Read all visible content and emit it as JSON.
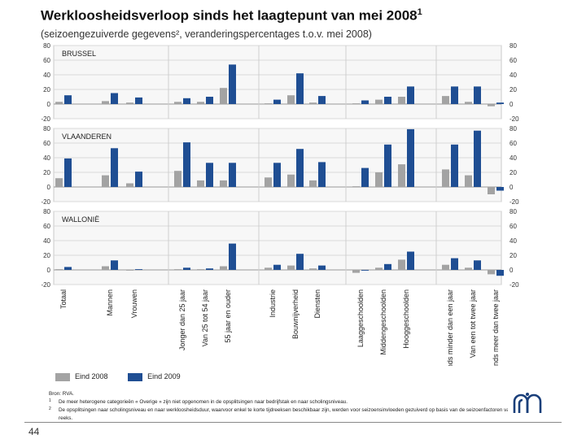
{
  "title": "Werkloosheidsverloop sinds het laagtepunt van mei 2008",
  "title_sup": "1",
  "subtitle": "(seizoengezuiverde gegevens², veranderingspercentages t.o.v. mei 2008)",
  "colors": {
    "eind2008": "#a3a3a3",
    "eind2009": "#1f4e93"
  },
  "legend": {
    "eind2008": "Eind 2008",
    "eind2009": "Eind 2009"
  },
  "source": "Bron: RVA.",
  "footnotes": [
    {
      "mark": "1",
      "text": "De meer heterogene categorieën « Overige » zijn niet opgenomen in de opsplitsingen naar bedrijfstak en naar scholingsniveau."
    },
    {
      "mark": "2",
      "text": "De opsplitsingen naar scholingsniveau en naar werkloosheidsduur, waarvoor enkel te korte tijdreeksen beschikbaar zijn, werden voor seizoensinvloeden gezuiverd op basis van de seizoenfactoren van de totale reeks."
    }
  ],
  "page_number": "44",
  "chart_data": {
    "type": "bar",
    "ylim": [
      -20,
      80
    ],
    "yticks": [
      "80",
      "60",
      "40",
      "20",
      "0",
      "-20"
    ],
    "categories": [
      "Totaal",
      "Mannen",
      "Vrouwen",
      "Jonger dan 25 jaar",
      "Van 25 tot 54 jaar",
      "55 jaar en ouder",
      "Industrie",
      "Bouwnijverheid",
      "Diensten",
      "Laaggeschoolden",
      "Middengeschoolden",
      "Hooggeschoolden",
      "Sinds minder dan een jaar",
      "Van een tot twee jaar",
      "Sinds meer dan twee jaar"
    ],
    "panels": [
      {
        "label": "BRUSSEL",
        "series": [
          {
            "name": "Eind 2008",
            "values": [
              3,
              4,
              2,
              3,
              3,
              22,
              1,
              12,
              2,
              1,
              6,
              10,
              11,
              3,
              -3
            ]
          },
          {
            "name": "Eind 2009",
            "values": [
              12,
              15,
              9,
              8,
              10,
              54,
              6,
              42,
              11,
              5,
              10,
              24,
              24,
              24,
              2
            ]
          }
        ]
      },
      {
        "label": "VLAANDEREN",
        "series": [
          {
            "name": "Eind 2008",
            "values": [
              12,
              16,
              5,
              22,
              9,
              9,
              13,
              17,
              9,
              1,
              20,
              31,
              24,
              16,
              -10
            ]
          },
          {
            "name": "Eind 2009",
            "values": [
              39,
              53,
              21,
              61,
              33,
              33,
              33,
              52,
              34,
              26,
              58,
              79,
              58,
              77,
              -5
            ]
          }
        ]
      },
      {
        "label": "WALLONIË",
        "series": [
          {
            "name": "Eind 2008",
            "values": [
              1,
              5,
              -1,
              1,
              1,
              5,
              3,
              6,
              2,
              -4,
              3,
              14,
              7,
              3,
              -6
            ]
          },
          {
            "name": "Eind 2009",
            "values": [
              4,
              13,
              1,
              3,
              2,
              36,
              7,
              22,
              6,
              -1,
              8,
              25,
              16,
              13,
              -8
            ]
          }
        ]
      }
    ]
  }
}
